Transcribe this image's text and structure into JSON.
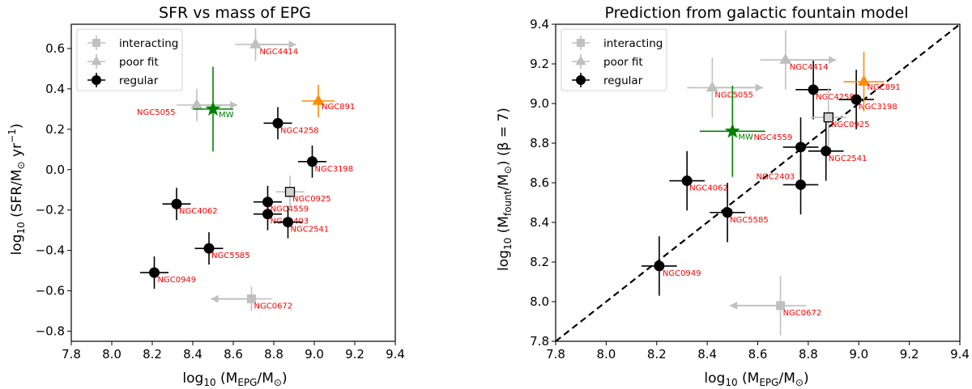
{
  "colors": {
    "regular": "#000000",
    "interacting": "#c0c0c0",
    "poor_fit": "#c0c0c0",
    "mw": "#008000",
    "ngc891": "#ff8c00",
    "labels": "#ff0000",
    "mw_label": "#008000"
  },
  "chart_data": [
    {
      "type": "scatter",
      "title": "SFR vs mass of EPG",
      "xlabel": "log10 (MEPG/M⊙)",
      "ylabel": "log10 (SFR/M⊙ yr−1)",
      "xlim": [
        7.8,
        9.4
      ],
      "ylim": [
        -0.85,
        0.72
      ],
      "xticks": [
        "7.8",
        "8.0",
        "8.2",
        "8.4",
        "8.6",
        "8.8",
        "9.0",
        "9.2",
        "9.4"
      ],
      "yticks": [
        "−0.8",
        "−0.6",
        "−0.4",
        "−0.2",
        "0.0",
        "0.2",
        "0.4",
        "0.6"
      ],
      "grid": false,
      "legend": {
        "placement": "top-left",
        "entries": [
          "interacting",
          "poor fit",
          "regular"
        ]
      },
      "series": [
        {
          "name": "regular",
          "marker": "circle",
          "points": [
            {
              "label": "NGC0949",
              "x": 8.21,
              "y": -0.51,
              "xerr": 0.07,
              "yerr": 0.08
            },
            {
              "label": "NGC4062",
              "x": 8.32,
              "y": -0.17,
              "xerr": 0.07,
              "yerr": 0.08
            },
            {
              "label": "NGC5585",
              "x": 8.48,
              "y": -0.39,
              "xerr": 0.07,
              "yerr": 0.08
            },
            {
              "label": "NGC4559",
              "x": 8.77,
              "y": -0.16,
              "xerr": 0.07,
              "yerr": 0.08
            },
            {
              "label": "NGC2403",
              "x": 8.77,
              "y": -0.22,
              "xerr": 0.07,
              "yerr": 0.08
            },
            {
              "label": "NGC2541",
              "x": 8.87,
              "y": -0.26,
              "xerr": 0.07,
              "yerr": 0.08
            },
            {
              "label": "NGC4258",
              "x": 8.82,
              "y": 0.23,
              "xerr": 0.07,
              "yerr": 0.08
            },
            {
              "label": "NGC3198",
              "x": 8.99,
              "y": 0.04,
              "xerr": 0.07,
              "yerr": 0.08
            }
          ]
        },
        {
          "name": "interacting",
          "marker": "square",
          "points": [
            {
              "label": "NGC0925",
              "x": 8.88,
              "y": -0.11,
              "xerr": 0.07,
              "yerr": 0.08
            },
            {
              "label": "NGC0672",
              "x": 8.69,
              "y": -0.64,
              "xerr_right": 0.1,
              "arrow": "left",
              "arrow_to": 8.49,
              "yerr": 0.06
            }
          ]
        },
        {
          "name": "poor fit",
          "marker": "triangle",
          "points": [
            {
              "label": "NGC4414",
              "x": 8.71,
              "y": 0.62,
              "arrow": "right",
              "arrow_to": 8.91,
              "yerr": 0.08,
              "xerr_left": 0.1
            },
            {
              "label": "NGC5055",
              "x": 8.42,
              "y": 0.32,
              "arrow": "right",
              "arrow_to": 8.62,
              "yerr": 0.08,
              "xerr_left": 0.1
            }
          ]
        },
        {
          "name": "NGC891",
          "marker": "triangle",
          "color": "#ff8c00",
          "points": [
            {
              "label": "NGC891",
              "x": 9.02,
              "y": 0.34,
              "xerr": 0.08,
              "yerr": 0.08
            }
          ]
        },
        {
          "name": "MW",
          "marker": "star",
          "color": "#008000",
          "points": [
            {
              "label": "MW",
              "x": 8.5,
              "y": 0.3,
              "xerr": 0.1,
              "yerr": 0.21
            }
          ]
        }
      ]
    },
    {
      "type": "scatter",
      "title": "Prediction from galactic fountain model",
      "xlabel": "log10 (MEPG/M⊙)",
      "ylabel": "log10 (Mfount/M⊙) (β = 7)",
      "xlim": [
        7.8,
        9.4
      ],
      "ylim": [
        7.8,
        9.4
      ],
      "xticks": [
        "7.8",
        "8.0",
        "8.2",
        "8.4",
        "8.6",
        "8.8",
        "9.0",
        "9.2",
        "9.4"
      ],
      "yticks": [
        "7.8",
        "8.0",
        "8.2",
        "8.4",
        "8.6",
        "8.8",
        "9.0",
        "9.2",
        "9.4"
      ],
      "grid": false,
      "reference_line": "y = x (dashed)",
      "legend": {
        "placement": "top-left",
        "entries": [
          "interacting",
          "poor fit",
          "regular"
        ]
      },
      "series": [
        {
          "name": "regular",
          "marker": "circle",
          "points": [
            {
              "label": "NGC0949",
              "x": 8.21,
              "y": 8.18,
              "xerr": 0.07,
              "yerr": 0.15
            },
            {
              "label": "NGC4062",
              "x": 8.32,
              "y": 8.61,
              "xerr": 0.07,
              "yerr": 0.15
            },
            {
              "label": "NGC5585",
              "x": 8.48,
              "y": 8.45,
              "xerr": 0.07,
              "yerr": 0.15
            },
            {
              "label": "NGC4559",
              "x": 8.77,
              "y": 8.78,
              "xerr": 0.07,
              "yerr": 0.15
            },
            {
              "label": "NGC2403",
              "x": 8.77,
              "y": 8.59,
              "xerr": 0.07,
              "yerr": 0.15
            },
            {
              "label": "NGC2541",
              "x": 8.87,
              "y": 8.76,
              "xerr": 0.07,
              "yerr": 0.15
            },
            {
              "label": "NGC4258",
              "x": 8.82,
              "y": 9.07,
              "xerr": 0.07,
              "yerr": 0.15
            },
            {
              "label": "NGC3198",
              "x": 8.99,
              "y": 9.02,
              "xerr": 0.07,
              "yerr": 0.15
            }
          ]
        },
        {
          "name": "interacting",
          "marker": "square",
          "points": [
            {
              "label": "NGC0925",
              "x": 8.88,
              "y": 8.93,
              "xerr": 0.07,
              "yerr": 0.15
            },
            {
              "label": "NGC0672",
              "x": 8.69,
              "y": 7.98,
              "xerr_right": 0.1,
              "arrow": "left",
              "arrow_to": 8.49,
              "yerr": 0.15
            }
          ]
        },
        {
          "name": "poor fit",
          "marker": "triangle",
          "points": [
            {
              "label": "NGC4414",
              "x": 8.71,
              "y": 9.22,
              "arrow": "right",
              "arrow_to": 8.91,
              "yerr": 0.15,
              "xerr_left": 0.1
            },
            {
              "label": "NGC5055",
              "x": 8.42,
              "y": 9.08,
              "arrow": "right",
              "arrow_to": 8.62,
              "yerr": 0.15,
              "xerr_left": 0.1
            }
          ]
        },
        {
          "name": "NGC891",
          "marker": "triangle",
          "color": "#ff8c00",
          "points": [
            {
              "label": "NGC891",
              "x": 9.02,
              "y": 9.11,
              "xerr": 0.08,
              "yerr": 0.15
            }
          ]
        },
        {
          "name": "MW",
          "marker": "star",
          "color": "#008000",
          "points": [
            {
              "label": "MW",
              "x": 8.5,
              "y": 8.86,
              "xerr": 0.13,
              "yerr": 0.23
            }
          ]
        }
      ]
    }
  ]
}
